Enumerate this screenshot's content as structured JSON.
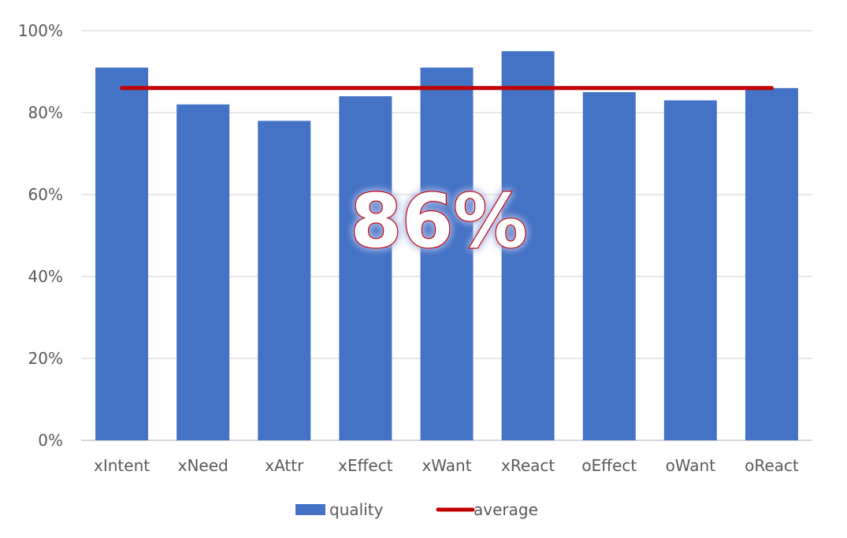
{
  "chart_data": {
    "type": "bar",
    "categories": [
      "xIntent",
      "xNeed",
      "xAttr",
      "xEffect",
      "xWant",
      "xReact",
      "oEffect",
      "oWant",
      "oReact"
    ],
    "series": [
      {
        "name": "quality",
        "type": "bar",
        "color": "#4472C4",
        "values": [
          91,
          82,
          78,
          84,
          91,
          95,
          85,
          83,
          86
        ]
      },
      {
        "name": "average",
        "type": "line",
        "color": "#C00000",
        "value": 86
      }
    ],
    "y_tick_labels": [
      "0%",
      "20%",
      "40%",
      "60%",
      "80%",
      "100%"
    ],
    "ylim": [
      0,
      100
    ],
    "y_ticks": [
      0,
      20,
      40,
      60,
      80,
      100
    ],
    "y_unit": "%",
    "grid": true,
    "legend_position": "bottom",
    "annotation": {
      "text": "86%",
      "fill_color": "#FFFFFF",
      "stroke_color": "#C00000"
    },
    "title": "",
    "xlabel": "",
    "ylabel": ""
  }
}
